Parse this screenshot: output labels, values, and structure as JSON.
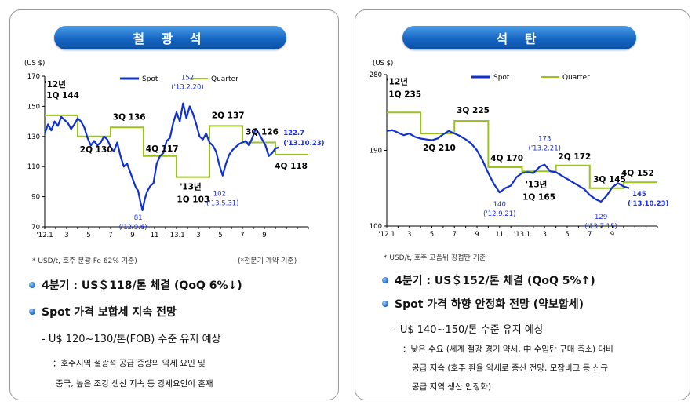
{
  "colors": {
    "spot": "#1030d0",
    "quarter": "#9ac31c",
    "annotation_blue": "#1a2ee6",
    "pill": "#1566c4"
  },
  "left": {
    "title": "철 광 석",
    "unit_label": "(US $)",
    "legend_spot": "Spot",
    "legend_quarter": "Quarter",
    "footnote_left": "* USD/t, 호주 분광 Fe 62% 기준)",
    "footnote_right": "(*전분기 계약 기준)",
    "bullet1": "4분기 : US＄118/톤 체결 (QoQ 6%↓)",
    "bullet2": "Spot 가격 보합세 지속 전망",
    "sub1": "- U$ 120~130/톤(FOB) 수준 유지 예상",
    "detail1": "：호주지역 철광석 공급 증량의 약세 요인 및",
    "detail2": "중국, 높은 조강 생산 지속 등 강세요인이 혼재"
  },
  "right": {
    "title": "석 탄",
    "unit_label": "(US $)",
    "legend_spot": "Spot",
    "legend_quarter": "Quarter",
    "footnote_left": "* USD/t, 호주 고품위 강점탄 기준",
    "bullet1": "4분기 : US＄152/톤 체결 (QoQ 5%↑)",
    "bullet2": "Spot 가격 하향 안정화 전망 (약보합세)",
    "sub1": "- U$ 140~150/톤 수준 유지 예상",
    "detail1": "：낮은 수요 (세계 철강 경기 약세, 中 수입탄 구매 축소) 대비",
    "detail2": "공급 지속 (호주 환율 약세로 증산 전망, 모잠비크 등 신규",
    "detail3": "공급 지역 생산 안정화)"
  },
  "chart_data": [
    {
      "type": "line",
      "name": "iron-ore",
      "ylim": [
        70,
        170
      ],
      "yticks": [
        "70",
        "90",
        "110",
        "130",
        "150",
        "170"
      ],
      "xlim": [
        0,
        24
      ],
      "xticks": [
        {
          "x": 0,
          "label": "'12.1"
        },
        {
          "x": 2,
          "label": "3"
        },
        {
          "x": 4,
          "label": "5"
        },
        {
          "x": 6,
          "label": "7"
        },
        {
          "x": 8,
          "label": "9"
        },
        {
          "x": 10,
          "label": "11"
        },
        {
          "x": 12,
          "label": "'13.1"
        },
        {
          "x": 14,
          "label": "3"
        },
        {
          "x": 16,
          "label": "5"
        },
        {
          "x": 18,
          "label": "7"
        },
        {
          "x": 20,
          "label": "9"
        }
      ],
      "series": [
        {
          "name": "Spot",
          "x": [
            0,
            0.3,
            0.6,
            0.9,
            1.2,
            1.5,
            1.8,
            2.1,
            2.4,
            2.7,
            3.0,
            3.3,
            3.6,
            3.9,
            4.2,
            4.5,
            4.8,
            5.1,
            5.4,
            5.7,
            6.0,
            6.3,
            6.6,
            6.9,
            7.2,
            7.5,
            7.8,
            8.1,
            8.3,
            8.5,
            8.7,
            8.9,
            9.1,
            9.3,
            9.6,
            9.9,
            10.2,
            10.5,
            10.8,
            11.1,
            11.4,
            11.7,
            12.0,
            12.3,
            12.6,
            12.9,
            13.2,
            13.5,
            13.8,
            14.1,
            14.4,
            14.7,
            15.0,
            15.3,
            15.6,
            15.9,
            16.2,
            16.5,
            16.8,
            17.1,
            17.4,
            17.7,
            18.0,
            18.3,
            18.6,
            18.9,
            19.2,
            19.5,
            19.8,
            20.1,
            20.4,
            20.7,
            21.0,
            21.3
          ],
          "values": [
            132,
            138,
            134,
            140,
            137,
            143,
            141,
            139,
            135,
            138,
            142,
            140,
            136,
            129,
            124,
            127,
            124,
            126,
            130,
            128,
            123,
            120,
            126,
            117,
            110,
            112,
            106,
            100,
            96,
            94,
            87,
            81,
            88,
            93,
            97,
            99,
            112,
            117,
            119,
            127,
            129,
            139,
            146,
            140,
            152,
            142,
            150,
            145,
            138,
            130,
            128,
            132,
            126,
            124,
            120,
            111,
            104,
            112,
            118,
            121,
            123,
            125,
            126,
            127,
            124,
            129,
            135,
            132,
            128,
            124,
            117,
            119,
            122,
            122.7
          ]
        },
        {
          "name": "Quarter",
          "x": [
            0,
            3,
            3,
            6,
            6,
            9,
            9,
            12,
            12,
            15,
            15,
            18,
            18,
            21,
            21,
            24
          ],
          "values": [
            144,
            144,
            130,
            130,
            136,
            136,
            117,
            117,
            103,
            103,
            137,
            137,
            126,
            126,
            118,
            118
          ]
        }
      ],
      "annotations": [
        {
          "x": 0.1,
          "y": 144,
          "text": "'12년"
        },
        {
          "x": 0.3,
          "y": 144,
          "text": "1Q 144"
        },
        {
          "x": 3.2,
          "y": 130,
          "text": "2Q 130"
        },
        {
          "x": 6.2,
          "y": 136,
          "text": "3Q 136"
        },
        {
          "x": 9.2,
          "y": 117,
          "text": "4Q 117"
        },
        {
          "x": 12.3,
          "y": 103,
          "text": "'13년"
        },
        {
          "x": 12.6,
          "y": 103,
          "text": "1Q 103"
        },
        {
          "x": 15.2,
          "y": 137,
          "text": "2Q 137"
        },
        {
          "x": 18.3,
          "y": 126,
          "text": "3Q 126"
        },
        {
          "x": 20.8,
          "y": 118,
          "text": "4Q 118"
        },
        {
          "x": 13.0,
          "y": 152,
          "text": "152"
        },
        {
          "x": 13.0,
          "y": 152,
          "text": "('13.2.20)"
        },
        {
          "x": 8.9,
          "y": 81,
          "text": "81"
        },
        {
          "x": 8.9,
          "y": 81,
          "text": "('12.9.6)"
        },
        {
          "x": 16.2,
          "y": 102,
          "text": "102"
        },
        {
          "x": 16.2,
          "y": 102,
          "text": "('13.5.31)"
        },
        {
          "x": 21.3,
          "y": 122.7,
          "text": "122.7"
        },
        {
          "x": 21.3,
          "y": 122.7,
          "text": "('13.10.23)"
        }
      ]
    },
    {
      "type": "line",
      "name": "coal",
      "ylim": [
        100,
        280
      ],
      "yticks": [
        "100",
        "190",
        "280"
      ],
      "xlim": [
        0,
        24
      ],
      "xticks": [
        {
          "x": 0,
          "label": "'12.1"
        },
        {
          "x": 2,
          "label": "3"
        },
        {
          "x": 4,
          "label": "5"
        },
        {
          "x": 6,
          "label": "7"
        },
        {
          "x": 8,
          "label": "9"
        },
        {
          "x": 10,
          "label": "11"
        },
        {
          "x": 12,
          "label": "'13.1"
        },
        {
          "x": 14,
          "label": "3"
        },
        {
          "x": 16,
          "label": "5"
        },
        {
          "x": 18,
          "label": "7"
        },
        {
          "x": 20,
          "label": "9"
        }
      ],
      "series": [
        {
          "name": "Spot",
          "x": [
            0,
            0.5,
            1.0,
            1.5,
            2.0,
            2.5,
            3.0,
            3.5,
            4.0,
            4.5,
            5.0,
            5.5,
            6.0,
            6.5,
            7.0,
            7.5,
            8.0,
            8.5,
            9.0,
            9.5,
            10.0,
            10.5,
            11.0,
            11.5,
            12.0,
            12.5,
            13.0,
            13.3,
            13.6,
            14.0,
            14.5,
            15.0,
            15.5,
            16.0,
            16.5,
            17.0,
            17.5,
            18.0,
            18.5,
            19.0,
            19.5,
            20.0,
            20.5,
            21.0,
            21.5
          ],
          "values": [
            213,
            214,
            211,
            208,
            210,
            206,
            204,
            203,
            202,
            204,
            209,
            213,
            210,
            207,
            203,
            198,
            190,
            178,
            163,
            150,
            140,
            145,
            148,
            158,
            163,
            164,
            163,
            167,
            171,
            173,
            165,
            164,
            160,
            156,
            152,
            148,
            144,
            137,
            132,
            129,
            136,
            146,
            151,
            147,
            145
          ]
        },
        {
          "name": "Quarter",
          "x": [
            0,
            3,
            3,
            6,
            6,
            9,
            9,
            12,
            12,
            15,
            15,
            18,
            18,
            21,
            21,
            24
          ],
          "values": [
            235,
            235,
            210,
            210,
            225,
            225,
            170,
            170,
            165,
            165,
            172,
            172,
            145,
            145,
            152,
            152
          ]
        }
      ],
      "annotations": [
        {
          "x": 0.1,
          "y": 235,
          "text": "'12년"
        },
        {
          "x": 0.3,
          "y": 235,
          "text": "1Q 235"
        },
        {
          "x": 3.2,
          "y": 210,
          "text": "2Q 210"
        },
        {
          "x": 6.2,
          "y": 225,
          "text": "3Q 225"
        },
        {
          "x": 9.2,
          "y": 170,
          "text": "4Q 170"
        },
        {
          "x": 12.3,
          "y": 165,
          "text": "'13년"
        },
        {
          "x": 12.6,
          "y": 165,
          "text": "1Q 165"
        },
        {
          "x": 15.2,
          "y": 172,
          "text": "2Q 172"
        },
        {
          "x": 18.3,
          "y": 145,
          "text": "3Q 145"
        },
        {
          "x": 20.8,
          "y": 152,
          "text": "4Q 152"
        },
        {
          "x": 14.0,
          "y": 173,
          "text": "173"
        },
        {
          "x": 14.0,
          "y": 173,
          "text": "('13.2.21)"
        },
        {
          "x": 10.0,
          "y": 140,
          "text": "140"
        },
        {
          "x": 10.0,
          "y": 140,
          "text": "('12.9.21)"
        },
        {
          "x": 19.0,
          "y": 129,
          "text": "129"
        },
        {
          "x": 19.0,
          "y": 129,
          "text": "('13.7.15)"
        },
        {
          "x": 21.5,
          "y": 145,
          "text": "145"
        },
        {
          "x": 21.5,
          "y": 145,
          "text": "('13.10.23)"
        }
      ]
    }
  ]
}
